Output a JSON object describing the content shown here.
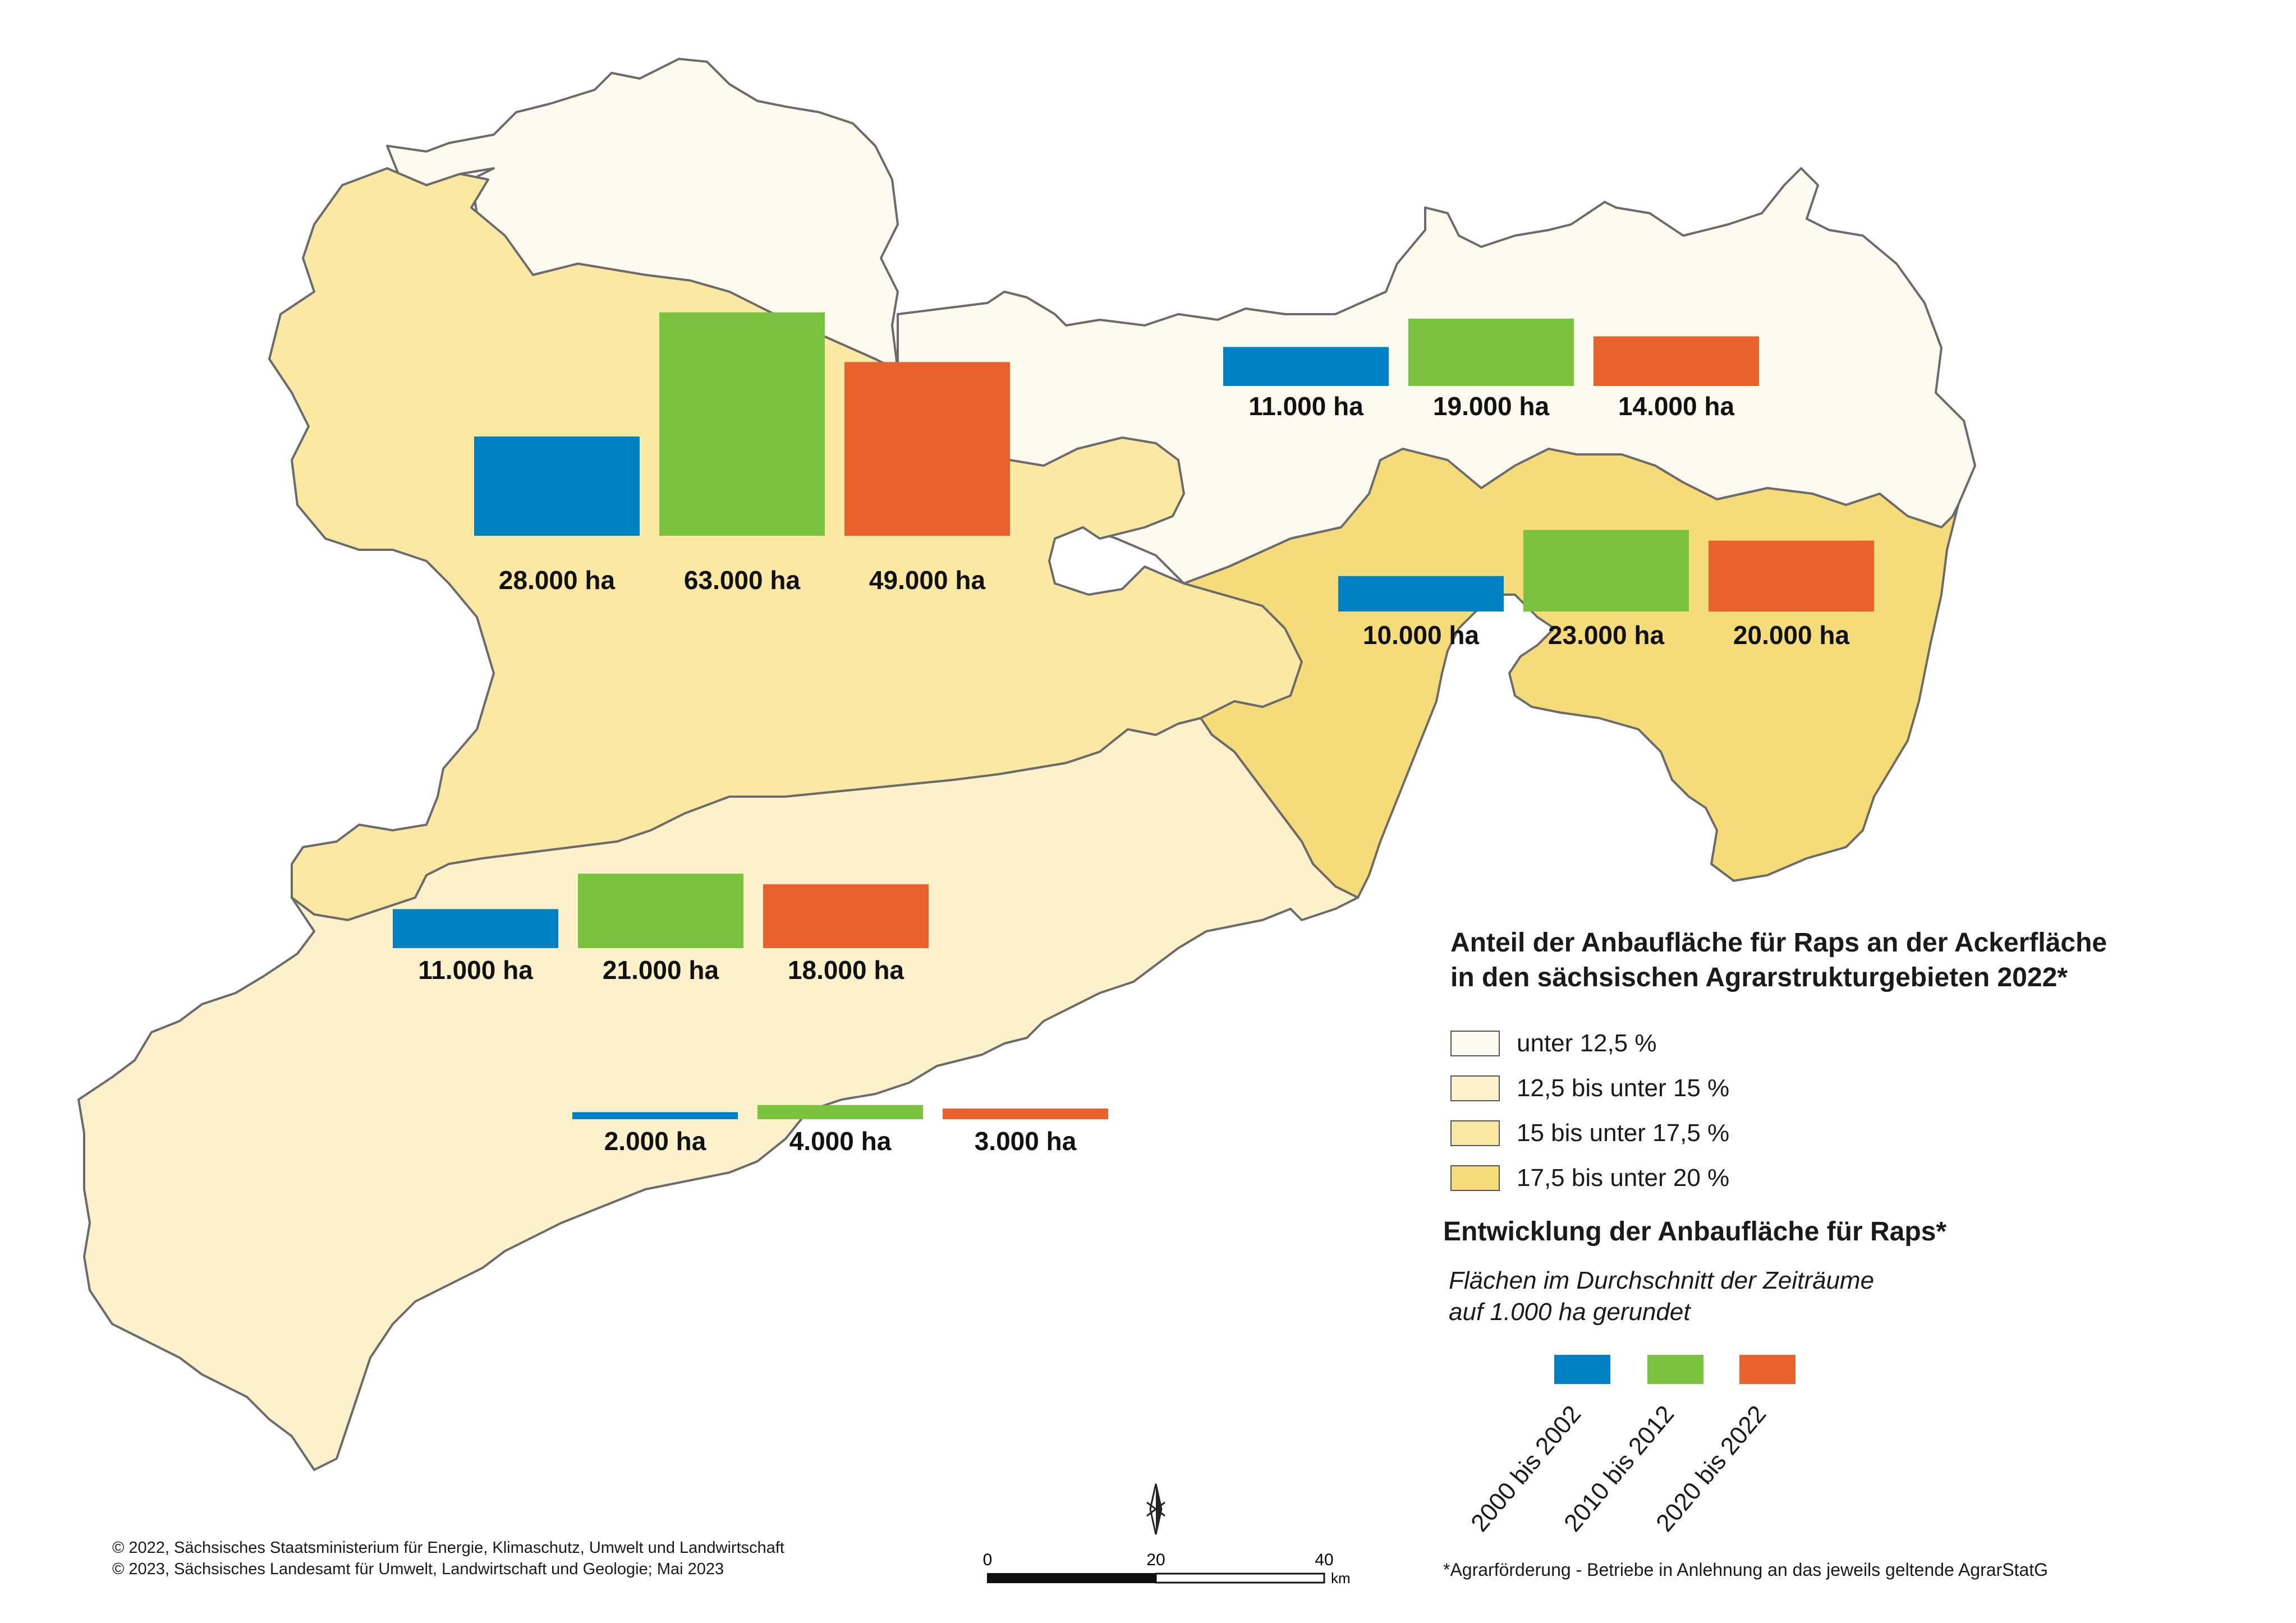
{
  "legend_share": {
    "title_line1": "Anteil der Anbaufläche für Raps an der Ackerfläche",
    "title_line2": "in den sächsischen Agrarstrukturgebieten 2022*",
    "classes": [
      {
        "label": "unter 12,5 %",
        "color": "#fdfbef"
      },
      {
        "label": "12,5 bis unter 15 %",
        "color": "#fcf1cb"
      },
      {
        "label": "15 bis unter 17,5 %",
        "color": "#fae8a3"
      },
      {
        "label": "17,5 bis unter 20 %",
        "color": "#f6dc78"
      }
    ]
  },
  "legend_development": {
    "title": "Entwicklung der Anbaufläche für Raps*",
    "subtitle_line1": "Flächen im Durchschnitt der Zeiträume",
    "subtitle_line2": "auf 1.000 ha gerundet",
    "periods": [
      {
        "label": "2000 bis 2002",
        "color": "#0081c3"
      },
      {
        "label": "2010 bis 2012",
        "color": "#7ac33f"
      },
      {
        "label": "2020 bis 2022",
        "color": "#e9612c"
      }
    ]
  },
  "regions": [
    {
      "name": "north-central",
      "values": [
        28000,
        63000,
        49000
      ],
      "labels": [
        "28.000 ha",
        "63.000 ha",
        "49.000 ha"
      ]
    },
    {
      "name": "north-east",
      "values": [
        11000,
        19000,
        14000
      ],
      "labels": [
        "11.000 ha",
        "19.000 ha",
        "14.000 ha"
      ]
    },
    {
      "name": "east",
      "values": [
        10000,
        23000,
        20000
      ],
      "labels": [
        "10.000 ha",
        "23.000 ha",
        "20.000 ha"
      ]
    },
    {
      "name": "south-central",
      "values": [
        11000,
        21000,
        18000
      ],
      "labels": [
        "11.000 ha",
        "21.000 ha",
        "18.000 ha"
      ]
    },
    {
      "name": "south-west",
      "values": [
        2000,
        4000,
        3000
      ],
      "labels": [
        "2.000 ha",
        "4.000 ha",
        "3.000 ha"
      ]
    }
  ],
  "scale_bar": {
    "ticks": [
      "0",
      "20",
      "40"
    ],
    "unit": "km"
  },
  "copyright_line1": "© 2022, Sächsisches Staatsministerium für Energie, Klimaschutz, Umwelt und Landwirtschaft",
  "copyright_line2": "© 2023, Sächsisches Landesamt für Umwelt, Landwirtschaft und Geologie; Mai 2023",
  "footnote": "*Agrarförderung - Betriebe in Anlehnung an das jeweils geltende AgrarStatG"
}
